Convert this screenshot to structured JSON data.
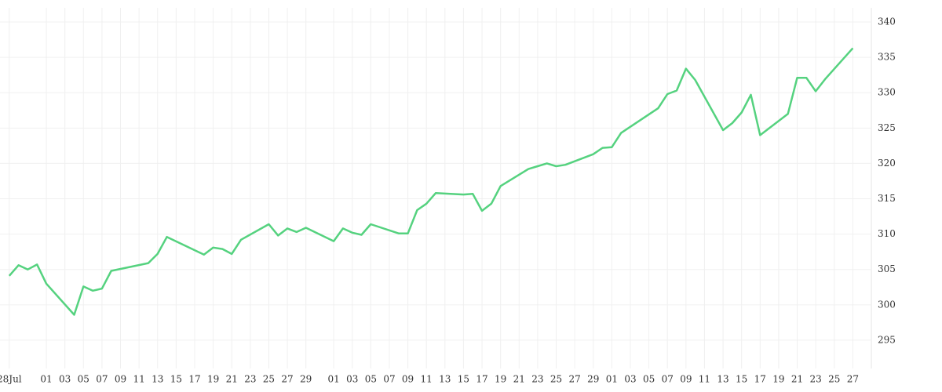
{
  "chart_data": {
    "type": "line",
    "x": [
      "07-28",
      "07-29",
      "07-30",
      "07-31",
      "08-01",
      "08-04",
      "08-05",
      "08-06",
      "08-07",
      "08-08",
      "08-12",
      "08-13",
      "08-14",
      "08-18",
      "08-19",
      "08-20",
      "08-21",
      "08-22",
      "08-25",
      "08-26",
      "08-27",
      "08-28",
      "08-29",
      "09-01",
      "09-02",
      "09-03",
      "09-04",
      "09-05",
      "09-08",
      "09-09",
      "09-10",
      "09-11",
      "09-12",
      "09-15",
      "09-16",
      "09-17",
      "09-18",
      "09-19",
      "09-22",
      "09-23",
      "09-24",
      "09-25",
      "09-26",
      "09-29",
      "09-30",
      "10-01",
      "10-02",
      "10-06",
      "10-07",
      "10-08",
      "10-09",
      "10-10",
      "10-13",
      "10-14",
      "10-15",
      "10-16",
      "10-17",
      "10-20",
      "10-21",
      "10-22",
      "10-23",
      "10-24",
      "10-27"
    ],
    "series": [
      {
        "color": "#55d27f",
        "values": [
          304.1,
          305.6,
          305.0,
          305.7,
          303.0,
          298.6,
          302.6,
          302.0,
          302.3,
          304.8,
          305.9,
          307.2,
          309.6,
          307.1,
          308.1,
          307.9,
          307.2,
          309.2,
          311.4,
          309.8,
          310.8,
          310.3,
          310.9,
          309.0,
          310.8,
          310.2,
          309.9,
          311.4,
          310.1,
          310.1,
          313.4,
          314.3,
          315.8,
          315.6,
          315.7,
          313.3,
          314.3,
          316.8,
          319.2,
          319.6,
          320.0,
          319.6,
          319.8,
          321.3,
          322.2,
          322.3,
          324.3,
          327.8,
          329.8,
          330.3,
          333.4,
          331.8,
          324.7,
          325.7,
          327.2,
          329.7,
          324.0,
          327.0,
          332.1,
          332.1,
          330.2,
          331.9,
          336.3
        ]
      }
    ],
    "xlim": [
      "07-27",
      "10-29"
    ],
    "xticks": [
      {
        "value": "07-28",
        "label": "28Jul"
      },
      {
        "value": "08-01",
        "label": "01"
      },
      {
        "value": "08-03",
        "label": "03"
      },
      {
        "value": "08-05",
        "label": "05"
      },
      {
        "value": "08-07",
        "label": "07"
      },
      {
        "value": "08-09",
        "label": "09"
      },
      {
        "value": "08-11",
        "label": "11"
      },
      {
        "value": "08-13",
        "label": "13"
      },
      {
        "value": "08-15",
        "label": "15"
      },
      {
        "value": "08-17",
        "label": "17"
      },
      {
        "value": "08-19",
        "label": "19"
      },
      {
        "value": "08-21",
        "label": "21"
      },
      {
        "value": "08-23",
        "label": "23"
      },
      {
        "value": "08-25",
        "label": "25"
      },
      {
        "value": "08-27",
        "label": "27"
      },
      {
        "value": "08-29",
        "label": "29"
      },
      {
        "value": "09-01",
        "label": "01"
      },
      {
        "value": "09-03",
        "label": "03"
      },
      {
        "value": "09-05",
        "label": "05"
      },
      {
        "value": "09-07",
        "label": "07"
      },
      {
        "value": "09-09",
        "label": "09"
      },
      {
        "value": "09-11",
        "label": "11"
      },
      {
        "value": "09-13",
        "label": "13"
      },
      {
        "value": "09-15",
        "label": "15"
      },
      {
        "value": "09-17",
        "label": "17"
      },
      {
        "value": "09-19",
        "label": "19"
      },
      {
        "value": "09-21",
        "label": "21"
      },
      {
        "value": "09-23",
        "label": "23"
      },
      {
        "value": "09-25",
        "label": "25"
      },
      {
        "value": "09-27",
        "label": "27"
      },
      {
        "value": "09-29",
        "label": "29"
      },
      {
        "value": "10-01",
        "label": "01"
      },
      {
        "value": "10-03",
        "label": "03"
      },
      {
        "value": "10-05",
        "label": "05"
      },
      {
        "value": "10-07",
        "label": "07"
      },
      {
        "value": "10-09",
        "label": "09"
      },
      {
        "value": "10-11",
        "label": "11"
      },
      {
        "value": "10-13",
        "label": "13"
      },
      {
        "value": "10-15",
        "label": "15"
      },
      {
        "value": "10-17",
        "label": "17"
      },
      {
        "value": "10-19",
        "label": "19"
      },
      {
        "value": "10-21",
        "label": "21"
      },
      {
        "value": "10-23",
        "label": "23"
      },
      {
        "value": "10-25",
        "label": "25"
      },
      {
        "value": "10-27",
        "label": "27"
      }
    ],
    "ylim": [
      291,
      342
    ],
    "yticks": [
      295,
      300,
      305,
      310,
      315,
      320,
      325,
      330,
      335,
      340
    ],
    "grid": true
  }
}
